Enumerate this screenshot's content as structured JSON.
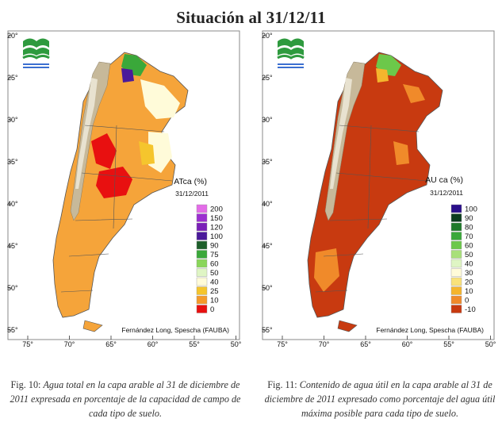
{
  "title": "Situación al 31/12/11",
  "logo": {
    "icon": "fauba-wave-logo-icon",
    "colors": [
      "#2e9a3e",
      "#3b6fd0"
    ]
  },
  "maps": [
    {
      "id": "atca",
      "legend_title": "ATca (%)",
      "legend_date": "31/12/2011",
      "legend_values": [
        "200",
        "150",
        "120",
        "100",
        "90",
        "75",
        "60",
        "50",
        "40",
        "25",
        "10",
        "0"
      ],
      "legend_colors": [
        "#e36ce8",
        "#9b2fd0",
        "#7a1fb8",
        "#4a1a9a",
        "#1d5e2a",
        "#3aa83a",
        "#8ad65a",
        "#dff5c4",
        "#fffbd9",
        "#f5c52d",
        "#f59a2a",
        "#e81010"
      ],
      "credit": "Fernández Long, Spescha (FAUBA)",
      "caption_label": "Fig. 10:",
      "caption_text": "Agua total en la capa arable al 31 de diciembre de 2011 expresada en porcentaje de la capacidad de campo de cada tipo de suelo."
    },
    {
      "id": "auca",
      "legend_title": "AU ca (%)",
      "legend_date": "31/12/2011",
      "legend_values": [
        "100",
        "90",
        "80",
        "70",
        "60",
        "50",
        "40",
        "30",
        "20",
        "10",
        "0",
        "-10"
      ],
      "legend_colors": [
        "#2a0f8a",
        "#0c3d1e",
        "#1f7a2a",
        "#3aa83a",
        "#6cc84a",
        "#a8e07a",
        "#dff5c4",
        "#fffbd9",
        "#f9e27a",
        "#f5b52d",
        "#f08a2a",
        "#c83a10"
      ],
      "credit": "Fernández Long, Spescha (FAUBA)",
      "caption_label": "Fig. 11:",
      "caption_text": "Contenido de agua útil en la capa arable al 31 de diciembre de 2011 expresado como porcentaje del agua útil máxima posible para cada tipo de suelo."
    }
  ],
  "axes": {
    "lat_labels": [
      "20°",
      "25°",
      "30°",
      "35°",
      "40°",
      "45°",
      "50°",
      "55°"
    ],
    "lon_labels": [
      "75°",
      "70°",
      "65°",
      "60°",
      "55°",
      "50°"
    ]
  }
}
